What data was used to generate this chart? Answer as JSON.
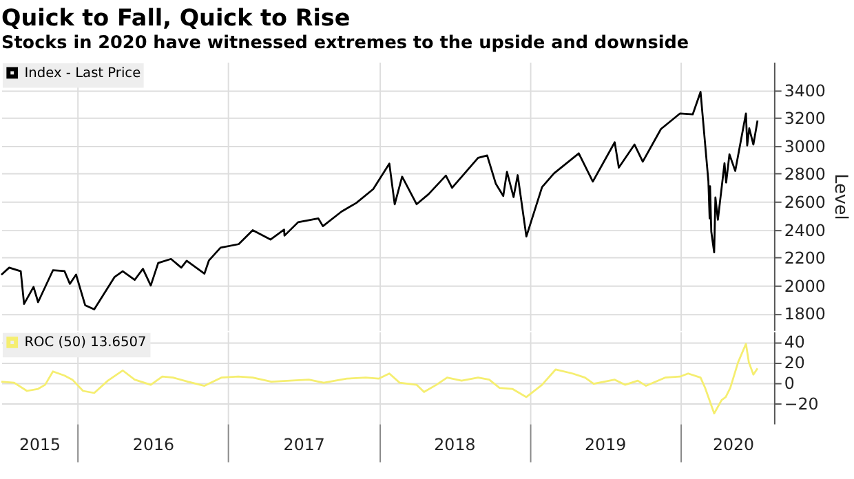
{
  "chart_data": [
    {
      "type": "line",
      "title": "Quick to Fall, Quick to Rise",
      "subtitle": "Stocks in 2020 have witnessed extremes to the upside and downside",
      "ylabel": "Level",
      "xlim": [
        "2015-07-01",
        "2020-08-15"
      ],
      "xticks": [
        {
          "value": "2016-01-01",
          "label": null
        },
        {
          "value": "2017-01-01",
          "label": null
        },
        {
          "value": "2018-01-01",
          "label": null
        },
        {
          "value": "2019-01-01",
          "label": null
        },
        {
          "value": "2020-01-01",
          "label": null
        }
      ],
      "ylim": [
        1680,
        3600
      ],
      "yticks": [
        1800,
        2000,
        2200,
        2400,
        2600,
        2800,
        3000,
        3200,
        3400
      ],
      "grid": true,
      "legend": "top left",
      "tick_labels": "y",
      "series": [
        {
          "name": "Index - Last Price",
          "color": "#000000",
          "x": [
            "2015-07-01",
            "2015-07-20",
            "2015-08-17",
            "2015-08-25",
            "2015-09-17",
            "2015-09-28",
            "2015-11-03",
            "2015-12-01",
            "2015-12-14",
            "2015-12-29",
            "2016-01-20",
            "2016-02-11",
            "2016-03-31",
            "2016-04-20",
            "2016-05-19",
            "2016-06-08",
            "2016-06-27",
            "2016-07-15",
            "2016-08-15",
            "2016-09-09",
            "2016-09-22",
            "2016-11-04",
            "2016-11-15",
            "2016-12-13",
            "2017-01-26",
            "2017-03-01",
            "2017-04-13",
            "2017-05-16",
            "2017-05-17",
            "2017-06-19",
            "2017-08-07",
            "2017-08-18",
            "2017-10-02",
            "2017-11-07",
            "2017-12-18",
            "2018-01-26",
            "2018-02-08",
            "2018-02-26",
            "2018-04-02",
            "2018-05-01",
            "2018-06-12",
            "2018-06-27",
            "2018-08-29",
            "2018-09-20",
            "2018-10-11",
            "2018-10-29",
            "2018-11-07",
            "2018-11-23",
            "2018-12-03",
            "2018-12-24",
            "2019-01-31",
            "2019-03-01",
            "2019-04-30",
            "2019-06-03",
            "2019-07-26",
            "2019-08-05",
            "2019-09-12",
            "2019-10-02",
            "2019-11-15",
            "2019-12-31",
            "2020-01-31",
            "2020-02-19",
            "2020-03-09",
            "2020-03-12",
            "2020-03-13",
            "2020-03-16",
            "2020-03-23",
            "2020-03-26",
            "2020-04-01",
            "2020-04-17",
            "2020-04-21",
            "2020-04-29",
            "2020-05-13",
            "2020-06-08",
            "2020-06-11",
            "2020-06-16",
            "2020-06-26",
            "2020-07-06"
          ],
          "values": [
            2077,
            2128,
            2102,
            1868,
            1990,
            1881,
            2109,
            2103,
            2012,
            2078,
            1859,
            1829,
            2060,
            2102,
            2040,
            2119,
            2000,
            2161,
            2190,
            2128,
            2177,
            2085,
            2180,
            2271,
            2296,
            2396,
            2329,
            2400,
            2357,
            2453,
            2480,
            2425,
            2529,
            2591,
            2690,
            2873,
            2581,
            2779,
            2582,
            2654,
            2787,
            2699,
            2914,
            2931,
            2728,
            2641,
            2814,
            2633,
            2790,
            2351,
            2704,
            2803,
            2946,
            2744,
            3025,
            2844,
            3009,
            2887,
            3120,
            3231,
            3225,
            3386,
            2746,
            2480,
            2711,
            2386,
            2237,
            2630,
            2470,
            2875,
            2737,
            2939,
            2820,
            3232,
            3002,
            3125,
            3009,
            3180
          ]
        }
      ]
    },
    {
      "type": "line",
      "xlim": [
        "2015-07-01",
        "2020-08-15"
      ],
      "xticks": [
        {
          "value": "2015-10-01",
          "label": "2015"
        },
        {
          "value": "2016-01-01",
          "label": null
        },
        {
          "value": "2016-07-02",
          "label": "2016"
        },
        {
          "value": "2017-01-01",
          "label": null
        },
        {
          "value": "2017-07-02",
          "label": "2017"
        },
        {
          "value": "2018-01-01",
          "label": null
        },
        {
          "value": "2018-07-02",
          "label": "2018"
        },
        {
          "value": "2019-01-01",
          "label": null
        },
        {
          "value": "2019-07-02",
          "label": "2019"
        },
        {
          "value": "2020-01-01",
          "label": null
        },
        {
          "value": "2020-05-07",
          "label": "2020"
        }
      ],
      "ylim": [
        -40,
        50
      ],
      "yticks": [
        -20,
        0,
        20,
        40
      ],
      "grid": true,
      "legend": "top left",
      "series": [
        {
          "name": "ROC (50) 13.6507",
          "color": "#f5ee70",
          "x": [
            "2015-07-01",
            "2015-08-01",
            "2015-09-01",
            "2015-09-28",
            "2015-10-15",
            "2015-11-03",
            "2015-12-01",
            "2015-12-20",
            "2016-01-15",
            "2016-02-11",
            "2016-03-15",
            "2016-04-20",
            "2016-05-19",
            "2016-06-27",
            "2016-07-25",
            "2016-08-20",
            "2016-09-25",
            "2016-11-04",
            "2016-12-15",
            "2017-01-25",
            "2017-03-01",
            "2017-04-15",
            "2017-05-30",
            "2017-07-15",
            "2017-08-20",
            "2017-10-15",
            "2017-11-30",
            "2017-12-31",
            "2018-01-26",
            "2018-02-20",
            "2018-04-02",
            "2018-04-20",
            "2018-05-20",
            "2018-06-15",
            "2018-07-20",
            "2018-08-29",
            "2018-09-25",
            "2018-10-20",
            "2018-11-20",
            "2018-12-24",
            "2019-01-31",
            "2019-03-05",
            "2019-04-15",
            "2019-05-15",
            "2019-06-05",
            "2019-07-26",
            "2019-08-20",
            "2019-09-20",
            "2019-10-10",
            "2019-11-25",
            "2019-12-31",
            "2020-01-20",
            "2020-02-19",
            "2020-03-01",
            "2020-03-23",
            "2020-04-10",
            "2020-04-20",
            "2020-05-01",
            "2020-05-20",
            "2020-06-08",
            "2020-06-15",
            "2020-06-26",
            "2020-07-06"
          ],
          "values": [
            1,
            0,
            -8,
            -6,
            -2,
            11,
            7,
            3,
            -8,
            -10,
            2,
            12,
            3,
            -2,
            6,
            5,
            1,
            -3,
            5,
            6,
            5,
            1,
            2,
            3,
            0,
            4,
            5,
            4,
            9,
            0,
            -2,
            -9,
            -2,
            5,
            2,
            5,
            3,
            -5,
            -6,
            -14,
            -2,
            13,
            9,
            5,
            -1,
            3,
            -2,
            2,
            -3,
            5,
            6,
            9,
            5,
            -5,
            -30,
            -17,
            -14,
            -5,
            20,
            38,
            20,
            8,
            14
          ]
        }
      ]
    }
  ]
}
